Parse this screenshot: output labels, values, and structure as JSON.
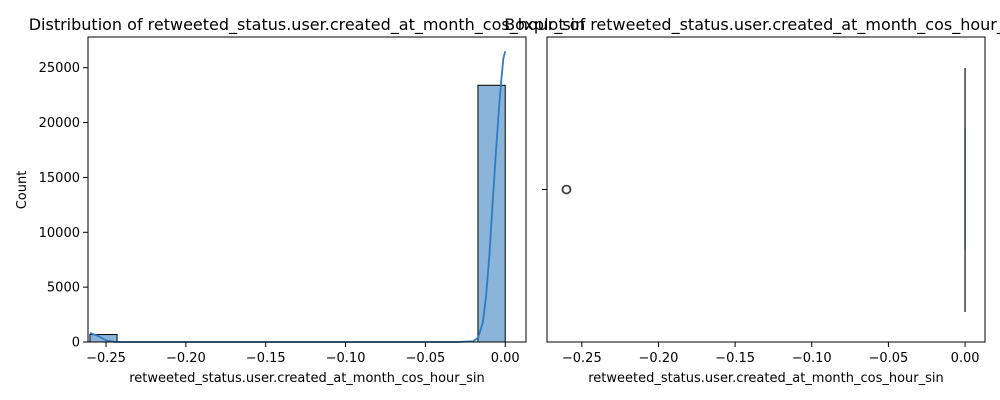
{
  "colors": {
    "bar_fill": "#8ab4d9",
    "bar_edge": "#000000",
    "kde_line": "#2e7bbf",
    "box_fill": "#3a78b5",
    "box_line": "#3f3f3f",
    "outlier": "#3f3f3f"
  },
  "chart_data": [
    {
      "type": "bar",
      "subtype": "histogram_with_kde",
      "title": "Distribution of retweeted_status.user.created_at_month_cos_hour_sin",
      "xlabel": "retweeted_status.user.created_at_month_cos_hour_sin",
      "ylabel": "Count",
      "xlim": [
        -0.2613,
        0.013
      ],
      "ylim": [
        0,
        27800
      ],
      "xticks": [
        -0.25,
        -0.2,
        -0.15,
        -0.1,
        -0.05,
        0.0
      ],
      "xtick_labels": [
        "−0.25",
        "−0.20",
        "−0.15",
        "−0.10",
        "−0.05",
        "0.00"
      ],
      "yticks": [
        0,
        5000,
        10000,
        15000,
        20000,
        25000
      ],
      "ytick_labels": [
        "0",
        "5000",
        "10000",
        "15000",
        "20000",
        "25000"
      ],
      "bins": [
        {
          "x0": -0.2601,
          "x1": -0.2431,
          "count": 680
        },
        {
          "x0": -0.0171,
          "x1": 0.0,
          "count": 23400
        }
      ],
      "kde": [
        [
          -0.2601,
          820
        ],
        [
          -0.255,
          560
        ],
        [
          -0.25,
          150
        ],
        [
          -0.245,
          20
        ],
        [
          -0.24,
          0
        ],
        [
          -0.2,
          0
        ],
        [
          -0.1,
          0
        ],
        [
          -0.03,
          0
        ],
        [
          -0.02,
          60
        ],
        [
          -0.017,
          400
        ],
        [
          -0.014,
          1800
        ],
        [
          -0.012,
          4200
        ],
        [
          -0.01,
          7800
        ],
        [
          -0.008,
          12500
        ],
        [
          -0.006,
          17000
        ],
        [
          -0.004,
          21200
        ],
        [
          -0.0025,
          23800
        ],
        [
          -0.0012,
          25800
        ],
        [
          0.0,
          26500
        ]
      ],
      "grid": false
    },
    {
      "type": "box",
      "title": "Boxplot of retweeted_status.user.created_at_month_cos_hour_sin",
      "xlabel": "retweeted_status.user.created_at_month_cos_hour_sin",
      "xlim": [
        -0.2727,
        0.013
      ],
      "xticks": [
        -0.25,
        -0.2,
        -0.15,
        -0.1,
        -0.05,
        0.0
      ],
      "xtick_labels": [
        "−0.25",
        "−0.20",
        "−0.15",
        "−0.10",
        "−0.05",
        "0.00"
      ],
      "ytick_labels": [
        ""
      ],
      "box": {
        "whisker_low": 0.0,
        "q1": 0.0,
        "median": 0.0,
        "q3": 0.0,
        "whisker_high": 0.0
      },
      "outliers": [
        -0.2601,
        -0.26,
        -0.2599,
        -0.2602,
        -0.2598
      ],
      "grid": false
    }
  ]
}
